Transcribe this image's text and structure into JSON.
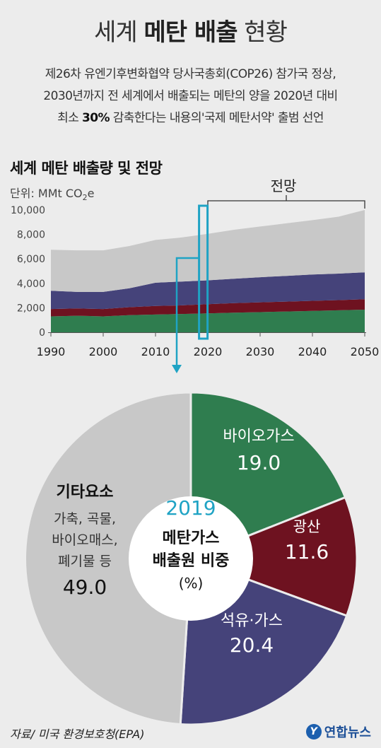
{
  "header": {
    "title_pre": "세계",
    "title_bold": "메탄 배출",
    "title_post": "현황",
    "intro_line1": "제26차 유엔기후변화협약 당사국총회(COP26) 참가국 정상,",
    "intro_line2": "2030년까지 전 세계에서 배출되는 메탄의 양을 2020년 대비",
    "intro_line3_pre": "최소 ",
    "intro_line3_bold": "30%",
    "intro_line3_post": " 감축한다는 내용의'국제 메탄서약' 출범 선언"
  },
  "area_chart_header": {
    "subtitle": "세계 메탄 배출량 및 전망",
    "unit_prefix": "단위: MMt CO",
    "unit_sub": "2",
    "unit_suffix": "e",
    "forecast_label": "전망"
  },
  "colors": {
    "green": "#2f7d4f",
    "maroon": "#6e1220",
    "navy": "#45437a",
    "gray": "#c8c8c8",
    "accent": "#1fa3c4",
    "bg": "#ececec"
  },
  "chart_data": [
    {
      "type": "area",
      "title": "세계 메탄 배출량 및 전망",
      "ylabel": "단위: MMt CO2e",
      "stacked": true,
      "x": [
        1990,
        1995,
        2000,
        2005,
        2010,
        2015,
        2020,
        2025,
        2030,
        2035,
        2040,
        2045,
        2050
      ],
      "ylim": [
        0,
        10000
      ],
      "yticks": [
        0,
        2000,
        4000,
        6000,
        8000,
        10000
      ],
      "ytick_labels": [
        "0",
        "2,000",
        "4,000",
        "6,000",
        "8,000",
        "10,000"
      ],
      "xticks": [
        1990,
        2000,
        2010,
        2020,
        2030,
        2040,
        2050
      ],
      "series": [
        {
          "values": [
            1300,
            1350,
            1300,
            1400,
            1450,
            1500,
            1550,
            1600,
            1650,
            1700,
            1750,
            1800,
            1850
          ]
        },
        {
          "values": [
            600,
            600,
            600,
            650,
            700,
            700,
            750,
            780,
            800,
            810,
            820,
            830,
            850
          ]
        },
        {
          "values": [
            1500,
            1350,
            1400,
            1550,
            1900,
            1950,
            1950,
            2000,
            2050,
            2100,
            2150,
            2170,
            2200
          ]
        },
        {
          "values": [
            3350,
            3400,
            3400,
            3450,
            3500,
            3600,
            3800,
            4000,
            4150,
            4300,
            4450,
            4650,
            5100
          ]
        }
      ]
    },
    {
      "type": "pie",
      "title": "2019 메탄가스 배출원 비중 (%)",
      "year": "2019",
      "center_line1": "메탄가스",
      "center_line2": "배출원 비중",
      "center_line3": "(%)",
      "slices": [
        {
          "label": "바이오가스",
          "value": 19.0,
          "value_text": "19.0",
          "color": "#2f7d4f"
        },
        {
          "label": "광산",
          "value": 11.6,
          "value_text": "11.6",
          "color": "#6e1220"
        },
        {
          "label": "석유·가스",
          "value": 20.4,
          "value_text": "20.4",
          "color": "#45437a"
        },
        {
          "label": "기타요소",
          "value": 49.0,
          "value_text": "49.0",
          "color": "#c8c8c8",
          "detail": [
            "가축, 곡물,",
            "바이오매스,",
            "폐기물 등"
          ]
        }
      ]
    }
  ],
  "footer": {
    "source": "자료/ 미국 환경보호청(EPA)",
    "logo_mark": "Y",
    "logo_name": "연합뉴스"
  }
}
